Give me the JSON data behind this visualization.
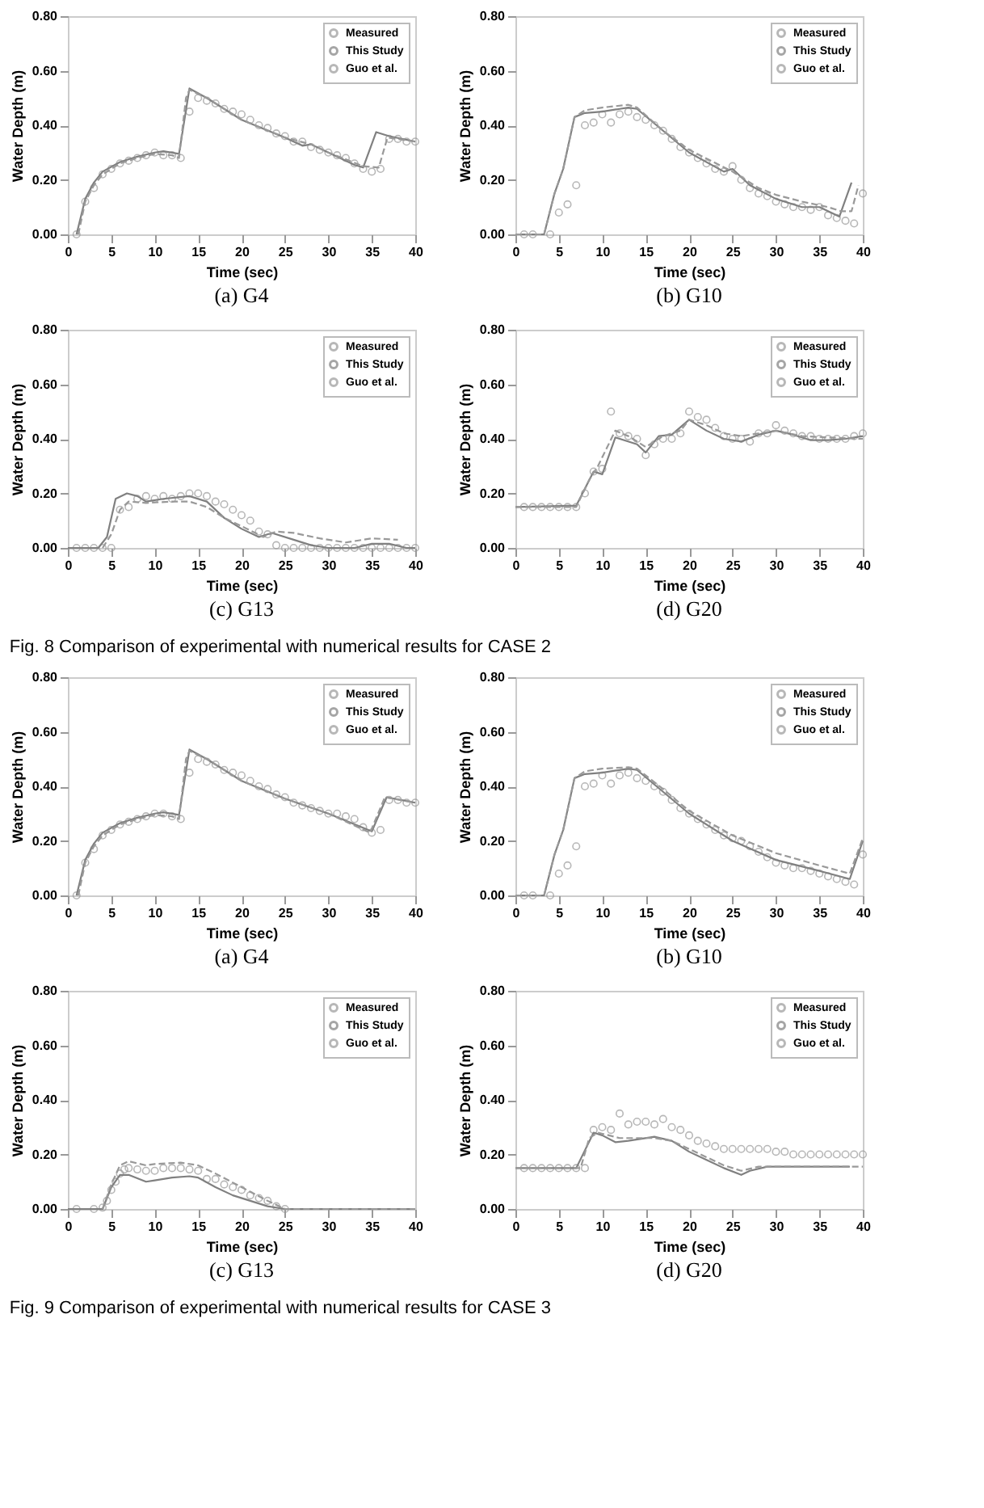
{
  "chart_data": [
    {
      "type": "line",
      "title": "(a)  G4",
      "xlabel": "Time (sec)",
      "ylabel": "Water Depth (m)",
      "xlim": [
        0,
        40
      ],
      "xticks": [
        0,
        5,
        10,
        15,
        20,
        25,
        30,
        35,
        40
      ],
      "ylim": [
        0,
        0.8
      ],
      "yticks": [
        {
          "value": 0,
          "label": "0.00"
        },
        {
          "value": 0.2,
          "label": "0.20"
        },
        {
          "value": 0.4,
          "label": "0.40"
        },
        {
          "value": 0.6,
          "label": "0.60"
        },
        {
          "value": 0.8,
          "label": "0.80"
        }
      ],
      "legend": "top right",
      "grid": false,
      "series": [
        {
          "name": "Measured",
          "type": "scatter",
          "marker": "circle",
          "color": "#999999",
          "x": [
            1,
            2,
            3,
            4,
            5,
            6,
            7,
            8,
            9,
            10,
            11,
            12,
            13,
            14,
            15,
            16,
            17,
            18,
            19,
            20,
            21,
            22,
            23,
            24,
            25,
            26,
            27,
            28,
            29,
            30,
            31,
            32,
            33,
            34,
            35,
            36,
            37,
            38,
            39,
            40
          ],
          "values": [
            0,
            0.12,
            0.17,
            0.22,
            0.24,
            0.26,
            0.27,
            0.28,
            0.29,
            0.3,
            0.29,
            0.29,
            0.28,
            0.45,
            0.5,
            0.49,
            0.48,
            0.46,
            0.45,
            0.44,
            0.42,
            0.4,
            0.39,
            0.37,
            0.36,
            0.34,
            0.34,
            0.32,
            0.31,
            0.3,
            0.29,
            0.28,
            0.26,
            0.24,
            0.23,
            0.24,
            0.35,
            0.35,
            0.34,
            0.34
          ]
        },
        {
          "name": "This Study",
          "type": "line",
          "line_style": "solid",
          "color": "#808080",
          "x": [
            1,
            2,
            3,
            4,
            6,
            8,
            10,
            11,
            12.8,
            14,
            16,
            20,
            25,
            27,
            28,
            30,
            33,
            34,
            35.5,
            37,
            40
          ],
          "values": [
            0,
            0.13,
            0.19,
            0.23,
            0.265,
            0.285,
            0.3,
            0.305,
            0.295,
            0.535,
            0.5,
            0.42,
            0.355,
            0.325,
            0.33,
            0.3,
            0.255,
            0.245,
            0.375,
            0.36,
            0.34
          ]
        },
        {
          "name": "Guo et al.",
          "type": "line",
          "line_style": "dashed",
          "color": "#999999",
          "x": [
            1.2,
            2,
            3,
            4,
            6,
            8,
            10,
            12,
            12.8,
            13.6,
            14,
            16,
            20,
            25,
            28,
            30,
            34,
            35.8,
            36.8,
            40
          ],
          "values": [
            0,
            0.12,
            0.18,
            0.22,
            0.26,
            0.28,
            0.295,
            0.29,
            0.28,
            0.5,
            0.53,
            0.5,
            0.42,
            0.355,
            0.33,
            0.3,
            0.25,
            0.245,
            0.355,
            0.34
          ]
        }
      ]
    },
    {
      "type": "line",
      "title": "(b)  G10",
      "xlabel": "Time (sec)",
      "ylabel": "Water Depth (m)",
      "xlim": [
        0,
        40
      ],
      "xticks": [
        0,
        5,
        10,
        15,
        20,
        25,
        30,
        35,
        40
      ],
      "ylim": [
        0,
        0.8
      ],
      "yticks": [
        {
          "value": 0,
          "label": "0.00"
        },
        {
          "value": 0.2,
          "label": "0.20"
        },
        {
          "value": 0.4,
          "label": "0.40"
        },
        {
          "value": 0.6,
          "label": "0.60"
        },
        {
          "value": 0.8,
          "label": "0.80"
        }
      ],
      "legend": "top right",
      "grid": false,
      "series": [
        {
          "name": "Measured",
          "type": "scatter",
          "marker": "circle",
          "color": "#999999",
          "x": [
            1,
            2,
            4,
            5,
            6,
            7,
            8,
            9,
            10,
            11,
            12,
            13,
            14,
            15,
            16,
            17,
            18,
            19,
            20,
            21,
            22,
            23,
            24,
            25,
            26,
            27,
            28,
            29,
            30,
            31,
            32,
            33,
            34,
            35,
            36,
            37,
            38,
            39,
            40
          ],
          "values": [
            0,
            0,
            0,
            0.08,
            0.11,
            0.18,
            0.4,
            0.41,
            0.44,
            0.41,
            0.44,
            0.45,
            0.43,
            0.42,
            0.4,
            0.38,
            0.35,
            0.32,
            0.3,
            0.28,
            0.26,
            0.24,
            0.23,
            0.25,
            0.2,
            0.17,
            0.15,
            0.14,
            0.12,
            0.11,
            0.1,
            0.1,
            0.09,
            0.1,
            0.07,
            0.06,
            0.05,
            0.04,
            0.15
          ]
        },
        {
          "name": "This Study",
          "type": "line",
          "line_style": "solid",
          "color": "#808080",
          "x": [
            0,
            3.3,
            4.5,
            5.5,
            6.8,
            8,
            10,
            12,
            13,
            14,
            17,
            20,
            24,
            25,
            27,
            30,
            33,
            35,
            37.3,
            38.7
          ],
          "values": [
            0,
            0,
            0.15,
            0.24,
            0.43,
            0.445,
            0.45,
            0.46,
            0.465,
            0.46,
            0.38,
            0.3,
            0.23,
            0.24,
            0.18,
            0.13,
            0.1,
            0.1,
            0.065,
            0.19
          ]
        },
        {
          "name": "Guo et al.",
          "type": "line",
          "line_style": "dashed",
          "color": "#999999",
          "x": [
            0,
            3.3,
            4.5,
            5.5,
            6.8,
            8,
            10,
            13,
            14,
            17,
            20,
            25,
            28,
            30,
            33,
            36,
            37.5,
            38.7,
            39.5
          ],
          "values": [
            0,
            0,
            0.15,
            0.24,
            0.43,
            0.455,
            0.465,
            0.475,
            0.465,
            0.38,
            0.31,
            0.23,
            0.17,
            0.145,
            0.12,
            0.1,
            0.085,
            0.085,
            0.18
          ]
        }
      ]
    },
    {
      "type": "line",
      "title": "(c)  G13",
      "xlabel": "Time (sec)",
      "ylabel": "Water Depth (m)",
      "xlim": [
        0,
        40
      ],
      "xticks": [
        0,
        5,
        10,
        15,
        20,
        25,
        30,
        35,
        40
      ],
      "ylim": [
        0,
        0.8
      ],
      "yticks": [
        {
          "value": 0,
          "label": "0.00"
        },
        {
          "value": 0.2,
          "label": "0.20"
        },
        {
          "value": 0.4,
          "label": "0.40"
        },
        {
          "value": 0.6,
          "label": "0.60"
        },
        {
          "value": 0.8,
          "label": "0.80"
        }
      ],
      "legend": "top right",
      "grid": false,
      "annotations": [
        "Fig. 8 Comparison of experimental with numerical results for CASE 2"
      ],
      "series": [
        {
          "name": "Measured",
          "type": "scatter",
          "marker": "circle",
          "color": "#999999",
          "x": [
            1,
            2,
            3,
            4,
            5,
            6,
            7,
            8,
            9,
            10,
            11,
            12,
            13,
            14,
            15,
            16,
            17,
            18,
            19,
            20,
            21,
            22,
            23,
            24,
            25,
            26,
            27,
            28,
            29,
            30,
            31,
            32,
            33,
            34,
            35,
            36,
            37,
            38,
            39,
            40
          ],
          "values": [
            0,
            0,
            0,
            0,
            0,
            0.14,
            0.15,
            0.18,
            0.19,
            0.18,
            0.19,
            0.18,
            0.19,
            0.2,
            0.2,
            0.19,
            0.17,
            0.16,
            0.14,
            0.12,
            0.1,
            0.06,
            0.05,
            0.01,
            0,
            0,
            0,
            0,
            0,
            0,
            0,
            0,
            0,
            0,
            0,
            0,
            0,
            0,
            0,
            0
          ]
        },
        {
          "name": "This Study",
          "type": "line",
          "line_style": "solid",
          "color": "#808080",
          "x": [
            0,
            3.5,
            4.5,
            5.5,
            6.8,
            8,
            9,
            11,
            14,
            16,
            18,
            20,
            22,
            23.5,
            26,
            28,
            30,
            33,
            35,
            37,
            39,
            40
          ],
          "values": [
            0,
            0,
            0.04,
            0.18,
            0.2,
            0.19,
            0.17,
            0.18,
            0.19,
            0.17,
            0.11,
            0.07,
            0.04,
            0.055,
            0.03,
            0.01,
            0,
            0,
            0.015,
            0.015,
            0,
            0
          ]
        },
        {
          "name": "Guo et al.",
          "type": "line",
          "line_style": "dashed",
          "color": "#999999",
          "x": [
            4,
            5,
            6,
            7,
            9,
            12,
            14,
            16,
            18,
            20,
            22.5,
            24,
            26,
            29,
            32,
            35,
            38
          ],
          "values": [
            0,
            0.05,
            0.14,
            0.17,
            0.165,
            0.17,
            0.17,
            0.15,
            0.11,
            0.08,
            0.04,
            0.06,
            0.055,
            0.035,
            0.02,
            0.035,
            0.03
          ]
        }
      ]
    },
    {
      "type": "line",
      "title": "(d)  G20",
      "xlabel": "Time (sec)",
      "ylabel": "Water Depth (m)",
      "xlim": [
        0,
        40
      ],
      "xticks": [
        0,
        5,
        10,
        15,
        20,
        25,
        30,
        35,
        40
      ],
      "ylim": [
        0,
        0.8
      ],
      "yticks": [
        {
          "value": 0,
          "label": "0.00"
        },
        {
          "value": 0.2,
          "label": "0.20"
        },
        {
          "value": 0.4,
          "label": "0.40"
        },
        {
          "value": 0.6,
          "label": "0.60"
        },
        {
          "value": 0.8,
          "label": "0.80"
        }
      ],
      "legend": "top right",
      "grid": false,
      "series": [
        {
          "name": "Measured",
          "type": "scatter",
          "marker": "circle",
          "color": "#999999",
          "x": [
            1,
            2,
            3,
            4,
            5,
            6,
            7,
            8,
            9,
            10,
            11,
            12,
            13,
            14,
            15,
            16,
            17,
            18,
            19,
            20,
            21,
            22,
            23,
            24,
            25,
            26,
            27,
            28,
            29,
            30,
            31,
            32,
            33,
            34,
            35,
            36,
            37,
            38,
            39,
            40
          ],
          "values": [
            0.15,
            0.15,
            0.15,
            0.15,
            0.15,
            0.15,
            0.15,
            0.2,
            0.28,
            0.29,
            0.5,
            0.42,
            0.41,
            0.4,
            0.34,
            0.38,
            0.4,
            0.4,
            0.42,
            0.5,
            0.48,
            0.47,
            0.44,
            0.41,
            0.4,
            0.4,
            0.39,
            0.42,
            0.42,
            0.45,
            0.43,
            0.42,
            0.41,
            0.41,
            0.4,
            0.4,
            0.4,
            0.4,
            0.41,
            0.42
          ]
        },
        {
          "name": "This Study",
          "type": "line",
          "line_style": "solid",
          "color": "#808080",
          "x": [
            0,
            7,
            9,
            10,
            11.5,
            14,
            15,
            16.5,
            18,
            20,
            22,
            24,
            26,
            28,
            30,
            32,
            34,
            36,
            38,
            40
          ],
          "values": [
            0.15,
            0.155,
            0.28,
            0.27,
            0.405,
            0.38,
            0.35,
            0.41,
            0.415,
            0.47,
            0.43,
            0.4,
            0.39,
            0.415,
            0.43,
            0.415,
            0.395,
            0.395,
            0.4,
            0.41
          ]
        },
        {
          "name": "Guo et al.",
          "type": "line",
          "line_style": "dashed",
          "color": "#999999",
          "x": [
            0,
            7,
            8.5,
            9.5,
            11.5,
            13,
            15,
            17,
            19,
            20,
            22,
            24,
            26,
            28,
            30,
            33,
            36,
            40
          ],
          "values": [
            0.15,
            0.15,
            0.25,
            0.3,
            0.43,
            0.41,
            0.37,
            0.41,
            0.43,
            0.47,
            0.45,
            0.42,
            0.41,
            0.42,
            0.43,
            0.41,
            0.405,
            0.4
          ]
        }
      ]
    },
    {
      "type": "line",
      "title": "(a)  G4",
      "xlabel": "Time (sec)",
      "ylabel": "Water Depth (m)",
      "xlim": [
        0,
        40
      ],
      "xticks": [
        0,
        5,
        10,
        15,
        20,
        25,
        30,
        35,
        40
      ],
      "ylim": [
        0,
        0.8
      ],
      "yticks": [
        {
          "value": 0,
          "label": "0.00"
        },
        {
          "value": 0.2,
          "label": "0.20"
        },
        {
          "value": 0.4,
          "label": "0.40"
        },
        {
          "value": 0.6,
          "label": "0.60"
        },
        {
          "value": 0.8,
          "label": "0.80"
        }
      ],
      "legend": "top right",
      "grid": false,
      "series": [
        {
          "name": "Measured",
          "type": "scatter",
          "marker": "circle",
          "color": "#999999",
          "x": [
            1,
            2,
            3,
            4,
            5,
            6,
            7,
            8,
            9,
            10,
            11,
            12,
            13,
            14,
            15,
            16,
            17,
            18,
            19,
            20,
            21,
            22,
            23,
            24,
            25,
            26,
            27,
            28,
            29,
            30,
            31,
            32,
            33,
            34,
            35,
            36,
            37,
            38,
            39,
            40
          ],
          "values": [
            0,
            0.12,
            0.17,
            0.22,
            0.24,
            0.26,
            0.27,
            0.28,
            0.29,
            0.3,
            0.3,
            0.29,
            0.28,
            0.45,
            0.5,
            0.49,
            0.48,
            0.46,
            0.45,
            0.44,
            0.42,
            0.4,
            0.39,
            0.37,
            0.36,
            0.34,
            0.33,
            0.32,
            0.31,
            0.3,
            0.3,
            0.29,
            0.28,
            0.25,
            0.23,
            0.24,
            0.35,
            0.35,
            0.34,
            0.34
          ]
        },
        {
          "name": "This Study",
          "type": "line",
          "line_style": "solid",
          "color": "#808080",
          "x": [
            1,
            2,
            3,
            4,
            6,
            8,
            10,
            11,
            12.8,
            14,
            16,
            20,
            25,
            30,
            35,
            36.7,
            40
          ],
          "values": [
            0,
            0.13,
            0.19,
            0.23,
            0.265,
            0.285,
            0.3,
            0.305,
            0.295,
            0.535,
            0.5,
            0.42,
            0.355,
            0.3,
            0.235,
            0.36,
            0.34
          ]
        },
        {
          "name": "Guo et al.",
          "type": "line",
          "line_style": "dashed",
          "color": "#999999",
          "x": [
            1.2,
            2,
            3,
            4,
            6,
            8,
            10,
            12,
            12.8,
            13.6,
            14,
            16,
            20,
            25,
            30,
            34.8,
            36.5,
            40
          ],
          "values": [
            0,
            0.12,
            0.18,
            0.22,
            0.26,
            0.28,
            0.295,
            0.29,
            0.28,
            0.5,
            0.53,
            0.5,
            0.42,
            0.355,
            0.3,
            0.23,
            0.36,
            0.34
          ]
        }
      ]
    },
    {
      "type": "line",
      "title": "(b)  G10",
      "xlabel": "Time (sec)",
      "ylabel": "Water Depth (m)",
      "xlim": [
        0,
        40
      ],
      "xticks": [
        0,
        5,
        10,
        15,
        20,
        25,
        30,
        35,
        40
      ],
      "ylim": [
        0,
        0.8
      ],
      "yticks": [
        {
          "value": 0,
          "label": "0.00"
        },
        {
          "value": 0.2,
          "label": "0.20"
        },
        {
          "value": 0.4,
          "label": "0.40"
        },
        {
          "value": 0.6,
          "label": "0.60"
        },
        {
          "value": 0.8,
          "label": "0.80"
        }
      ],
      "legend": "top right",
      "grid": false,
      "series": [
        {
          "name": "Measured",
          "type": "scatter",
          "marker": "circle",
          "color": "#999999",
          "x": [
            1,
            2,
            4,
            5,
            6,
            7,
            8,
            9,
            10,
            11,
            12,
            13,
            14,
            15,
            16,
            17,
            18,
            19,
            20,
            21,
            22,
            23,
            24,
            25,
            26,
            27,
            28,
            29,
            30,
            31,
            32,
            33,
            34,
            35,
            36,
            37,
            38,
            39,
            40
          ],
          "values": [
            0,
            0,
            0,
            0.08,
            0.11,
            0.18,
            0.4,
            0.41,
            0.44,
            0.41,
            0.44,
            0.45,
            0.43,
            0.42,
            0.4,
            0.38,
            0.35,
            0.32,
            0.3,
            0.28,
            0.26,
            0.24,
            0.22,
            0.21,
            0.2,
            0.18,
            0.16,
            0.14,
            0.12,
            0.11,
            0.1,
            0.1,
            0.09,
            0.08,
            0.07,
            0.06,
            0.05,
            0.04,
            0.15
          ]
        },
        {
          "name": "This Study",
          "type": "line",
          "line_style": "solid",
          "color": "#808080",
          "x": [
            0,
            3.3,
            4.5,
            5.5,
            6.8,
            8,
            10,
            13,
            14,
            17,
            20,
            25,
            30,
            35,
            38.5,
            40
          ],
          "values": [
            0,
            0,
            0.15,
            0.24,
            0.43,
            0.445,
            0.45,
            0.465,
            0.46,
            0.38,
            0.3,
            0.2,
            0.13,
            0.09,
            0.06,
            0.2
          ]
        },
        {
          "name": "Guo et al.",
          "type": "line",
          "line_style": "dashed",
          "color": "#999999",
          "x": [
            0,
            3.3,
            4.5,
            5.5,
            6.8,
            8,
            10,
            13,
            14,
            17,
            20,
            25,
            30,
            35,
            38.5,
            40
          ],
          "values": [
            0,
            0,
            0.15,
            0.24,
            0.43,
            0.455,
            0.465,
            0.47,
            0.465,
            0.39,
            0.31,
            0.22,
            0.155,
            0.11,
            0.08,
            0.21
          ]
        }
      ]
    },
    {
      "type": "line",
      "title": "(c)  G13",
      "xlabel": "Time (sec)",
      "ylabel": "Water Depth (m)",
      "xlim": [
        0,
        40
      ],
      "xticks": [
        0,
        5,
        10,
        15,
        20,
        25,
        30,
        35,
        40
      ],
      "ylim": [
        0,
        0.8
      ],
      "yticks": [
        {
          "value": 0,
          "label": "0.00"
        },
        {
          "value": 0.2,
          "label": "0.20"
        },
        {
          "value": 0.4,
          "label": "0.40"
        },
        {
          "value": 0.6,
          "label": "0.60"
        },
        {
          "value": 0.8,
          "label": "0.80"
        }
      ],
      "legend": "top right",
      "grid": false,
      "annotations": [
        "Fig. 9 Comparison of experimental with numerical results for CASE 3"
      ],
      "series": [
        {
          "name": "Measured",
          "type": "scatter",
          "marker": "circle",
          "color": "#999999",
          "x": [
            1,
            3,
            4,
            4.5,
            5,
            5.5,
            6,
            6.5,
            7,
            8,
            9,
            10,
            11,
            12,
            13,
            14,
            15,
            16,
            17,
            18,
            19,
            20,
            21,
            22,
            23,
            24,
            25
          ],
          "values": [
            0,
            0,
            0.005,
            0.03,
            0.07,
            0.1,
            0.13,
            0.145,
            0.15,
            0.145,
            0.14,
            0.14,
            0.15,
            0.15,
            0.15,
            0.145,
            0.14,
            0.11,
            0.11,
            0.09,
            0.08,
            0.07,
            0.05,
            0.04,
            0.03,
            0.01,
            0
          ]
        },
        {
          "name": "This Study",
          "type": "line",
          "line_style": "solid",
          "color": "#808080",
          "x": [
            0,
            4,
            5,
            6,
            7,
            9,
            10,
            12,
            14,
            15,
            17,
            19,
            21,
            23,
            25,
            40
          ],
          "values": [
            0,
            0,
            0.08,
            0.125,
            0.125,
            0.1,
            0.105,
            0.115,
            0.12,
            0.115,
            0.08,
            0.05,
            0.03,
            0.01,
            0,
            0
          ]
        },
        {
          "name": "Guo et al.",
          "type": "line",
          "line_style": "dashed",
          "color": "#999999",
          "x": [
            4,
            5,
            6,
            7,
            9,
            10,
            13,
            15,
            17,
            20,
            23,
            25,
            40
          ],
          "values": [
            0,
            0.09,
            0.16,
            0.175,
            0.16,
            0.165,
            0.17,
            0.16,
            0.13,
            0.08,
            0.03,
            0,
            0
          ]
        }
      ]
    },
    {
      "type": "line",
      "title": "(d)  G20",
      "xlabel": "Time (sec)",
      "ylabel": "Water Depth (m)",
      "xlim": [
        0,
        40
      ],
      "xticks": [
        0,
        5,
        10,
        15,
        20,
        25,
        30,
        35,
        40
      ],
      "ylim": [
        0,
        0.8
      ],
      "yticks": [
        {
          "value": 0,
          "label": "0.00"
        },
        {
          "value": 0.2,
          "label": "0.20"
        },
        {
          "value": 0.4,
          "label": "0.40"
        },
        {
          "value": 0.6,
          "label": "0.60"
        },
        {
          "value": 0.8,
          "label": "0.80"
        }
      ],
      "legend": "top right",
      "grid": false,
      "series": [
        {
          "name": "Measured",
          "type": "scatter",
          "marker": "circle",
          "color": "#999999",
          "x": [
            1,
            2,
            3,
            4,
            5,
            6,
            7,
            8,
            9,
            10,
            11,
            12,
            13,
            14,
            15,
            16,
            17,
            18,
            19,
            20,
            21,
            22,
            23,
            24,
            25,
            26,
            27,
            28,
            29,
            30,
            31,
            32,
            33,
            34,
            35,
            36,
            37,
            38,
            39,
            40
          ],
          "values": [
            0.15,
            0.15,
            0.15,
            0.15,
            0.15,
            0.15,
            0.15,
            0.15,
            0.29,
            0.3,
            0.29,
            0.35,
            0.31,
            0.32,
            0.32,
            0.31,
            0.33,
            0.3,
            0.29,
            0.27,
            0.25,
            0.24,
            0.23,
            0.22,
            0.22,
            0.22,
            0.22,
            0.22,
            0.22,
            0.21,
            0.21,
            0.2,
            0.2,
            0.2,
            0.2,
            0.2,
            0.2,
            0.2,
            0.2,
            0.2
          ]
        },
        {
          "name": "This Study",
          "type": "line",
          "line_style": "solid",
          "color": "#808080",
          "x": [
            0,
            7,
            9,
            10,
            11.5,
            13,
            16,
            18,
            20,
            22,
            24,
            26,
            27,
            29,
            35,
            38.5
          ],
          "values": [
            0.15,
            0.15,
            0.28,
            0.27,
            0.245,
            0.25,
            0.265,
            0.25,
            0.21,
            0.18,
            0.15,
            0.125,
            0.14,
            0.155,
            0.155,
            0.155
          ]
        },
        {
          "name": "Guo et al.",
          "type": "line",
          "line_style": "dashed",
          "color": "#999999",
          "x": [
            0,
            7.5,
            8.5,
            9.5,
            12,
            16,
            18,
            20,
            24,
            26,
            28,
            35,
            40
          ],
          "values": [
            0.15,
            0.15,
            0.26,
            0.28,
            0.26,
            0.26,
            0.25,
            0.22,
            0.16,
            0.14,
            0.155,
            0.155,
            0.155
          ]
        }
      ]
    }
  ]
}
